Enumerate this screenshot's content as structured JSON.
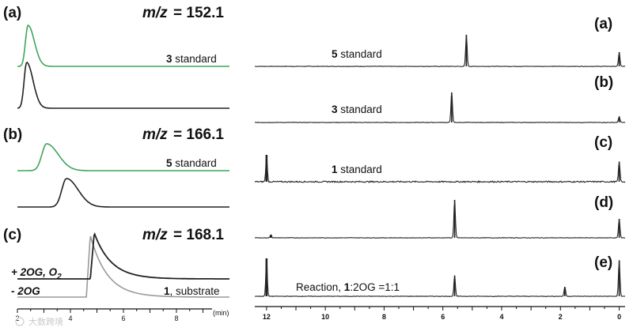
{
  "colors": {
    "standard_trace": "#3fa55a",
    "sample_trace": "#222222",
    "light_trace": "#9a9a9a",
    "axis": "#111111"
  },
  "watermark": {
    "text": "大数跨境"
  },
  "chart_data": [
    {
      "type": "line",
      "panels": [
        {
          "label": "(a)",
          "mz_prefix": "m/z",
          "mz_value": "= 152.1",
          "traces": [
            {
              "caption_bold": "3",
              "caption_text": " standard",
              "color": "#3fa55a",
              "peaks": [
                {
                  "x": 2.4,
                  "height": 1.0,
                  "width": 0.12
                }
              ],
              "baseline_level": 0.0
            },
            {
              "caption_bold": "",
              "caption_text": "",
              "color": "#222222",
              "peaks": [
                {
                  "x": 2.35,
                  "height": 1.0,
                  "width": 0.12
                }
              ],
              "baseline_level": 0.0
            }
          ]
        },
        {
          "label": "(b)",
          "mz_prefix": "m/z",
          "mz_value": "= 166.1",
          "traces": [
            {
              "caption_bold": "5",
              "caption_text": " standard",
              "color": "#3fa55a",
              "peaks": [
                {
                  "x": 3.1,
                  "height": 1.0,
                  "width": 0.22
                }
              ],
              "baseline_level": 0.0
            },
            {
              "caption_bold": "",
              "caption_text": "",
              "color": "#222222",
              "peaks": [
                {
                  "x": 3.85,
                  "height": 1.0,
                  "width": 0.22
                }
              ],
              "baseline_level": 0.0
            }
          ]
        },
        {
          "label": "(c)",
          "mz_prefix": "m/z",
          "mz_value": "= 168.1",
          "traces": [
            {
              "row_label": "+ 2OG, O",
              "row_label_sub": "2",
              "color": "#222222",
              "peaks": [
                {
                  "x": 4.9,
                  "height": 1.0,
                  "width": 0.4
                }
              ],
              "baseline_level": 0.18
            },
            {
              "row_label": "- 2OG",
              "caption_bold": "1",
              "caption_text": ", substrate",
              "color": "#9a9a9a",
              "peaks": [
                {
                  "x": 4.75,
                  "height": 1.0,
                  "width": 0.4
                }
              ],
              "baseline_level": 0.0
            }
          ]
        }
      ],
      "x_axis": {
        "ticks": [
          "2",
          "4",
          "6",
          "8"
        ],
        "tick_values": [
          2,
          4,
          6,
          8
        ],
        "unit": "(min)",
        "xlim": [
          2,
          10
        ]
      }
    },
    {
      "type": "line",
      "spectra": [
        {
          "label": "(a)",
          "caption_bold": "5",
          "caption_text": " standard",
          "peaks": [
            {
              "ppm": 5.2,
              "height": 1.0
            },
            {
              "ppm": 0.0,
              "height": 0.45
            }
          ]
        },
        {
          "label": "(b)",
          "caption_bold": "3",
          "caption_text": " standard",
          "peaks": [
            {
              "ppm": 5.7,
              "height": 1.0
            },
            {
              "ppm": 0.0,
              "height": 0.2
            }
          ]
        },
        {
          "label": "(c)",
          "caption_bold": "1",
          "caption_text": " standard",
          "peaks": [
            {
              "ppm": 12.0,
              "height": 1.0
            },
            {
              "ppm": 0.0,
              "height": 0.75
            }
          ]
        },
        {
          "label": "(d)",
          "caption_bold": "",
          "caption_text": "",
          "peaks": [
            {
              "ppm": 5.6,
              "height": 1.0
            },
            {
              "ppm": 11.85,
              "height": 0.08
            },
            {
              "ppm": 0.0,
              "height": 0.5
            }
          ]
        },
        {
          "label": "(e)",
          "caption_prefix": "Reaction, ",
          "caption_bold": "1",
          "caption_text": ":2OG =1:1",
          "peaks": [
            {
              "ppm": 12.0,
              "height": 1.0
            },
            {
              "ppm": 5.6,
              "height": 0.55
            },
            {
              "ppm": 1.85,
              "height": 0.25
            },
            {
              "ppm": 0.0,
              "height": 0.95
            }
          ]
        }
      ],
      "x_axis": {
        "ticks": [
          "12",
          "10",
          "8",
          "6",
          "4",
          "2",
          "0"
        ],
        "tick_values": [
          12,
          10,
          8,
          6,
          4,
          2,
          0
        ],
        "xlim": [
          12.4,
          -0.2
        ],
        "reversed": true
      }
    }
  ]
}
